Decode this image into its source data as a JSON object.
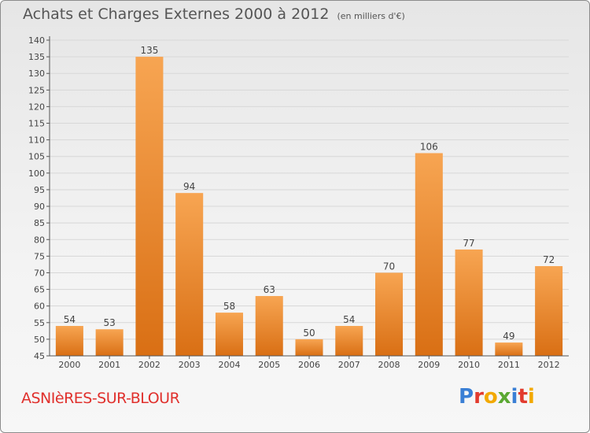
{
  "header": {
    "title": "Achats et Charges Externes 2000 à 2012",
    "subtitle": "(en milliers d'€)"
  },
  "footer": {
    "commune": "ASNIèRES-SUR-BLOUR",
    "logo_letters": [
      "P",
      "r",
      "o",
      "x",
      "i",
      "t",
      "i"
    ],
    "logo_colors": [
      "#3a7fd5",
      "#e23b2e",
      "#f2a900",
      "#5aa832",
      "#3a7fd5",
      "#e23b2e",
      "#f2a900"
    ]
  },
  "colors": {
    "bar_light": "#f7a552",
    "bar_dark": "#d96f14",
    "axis": "#555555",
    "grid": "#d7d7d7"
  },
  "chart_data": {
    "type": "bar",
    "title": "Achats et Charges Externes 2000 à 2012",
    "subtitle": "(en milliers d'€)",
    "xlabel": "",
    "ylabel": "",
    "categories": [
      "2000",
      "2001",
      "2002",
      "2003",
      "2004",
      "2005",
      "2006",
      "2007",
      "2008",
      "2009",
      "2010",
      "2011",
      "2012"
    ],
    "values": [
      54,
      53,
      135,
      94,
      58,
      63,
      50,
      54,
      70,
      106,
      77,
      49,
      72
    ],
    "ylim": [
      45,
      140
    ],
    "yticks": [
      45,
      50,
      55,
      60,
      65,
      70,
      75,
      80,
      85,
      90,
      95,
      100,
      105,
      110,
      115,
      120,
      125,
      130,
      135,
      140
    ],
    "grid": true,
    "legend": "none"
  }
}
